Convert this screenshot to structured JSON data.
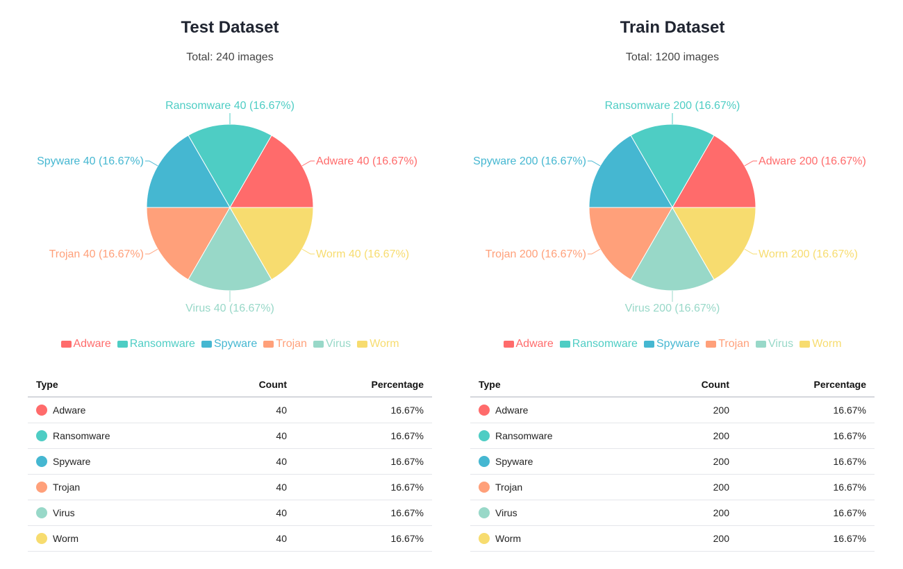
{
  "chart_data": [
    {
      "type": "pie",
      "title": "Test Dataset",
      "subtitle": "Total: 240 images",
      "categories": [
        "Adware",
        "Ransomware",
        "Spyware",
        "Trojan",
        "Virus",
        "Worm"
      ],
      "values": [
        40,
        40,
        40,
        40,
        40,
        40
      ],
      "percentages": [
        "16.67%",
        "16.67%",
        "16.67%",
        "16.67%",
        "16.67%",
        "16.67%"
      ],
      "slice_labels": [
        "Adware 40 (16.67%)",
        "Ransomware 40 (16.67%)",
        "Spyware 40 (16.67%)",
        "Trojan 40 (16.67%)",
        "Virus 40 (16.67%)",
        "Worm 40 (16.67%)"
      ],
      "colors": [
        "#ff6b6b",
        "#4ecdc4",
        "#45b7d1",
        "#ffa07a",
        "#98d8c8",
        "#f7dc6f"
      ],
      "legend_position": "bottom",
      "table": {
        "headers": [
          "Type",
          "Count",
          "Percentage"
        ],
        "rows": [
          {
            "type": "Adware",
            "count": "40",
            "percentage": "16.67%"
          },
          {
            "type": "Ransomware",
            "count": "40",
            "percentage": "16.67%"
          },
          {
            "type": "Spyware",
            "count": "40",
            "percentage": "16.67%"
          },
          {
            "type": "Trojan",
            "count": "40",
            "percentage": "16.67%"
          },
          {
            "type": "Virus",
            "count": "40",
            "percentage": "16.67%"
          },
          {
            "type": "Worm",
            "count": "40",
            "percentage": "16.67%"
          }
        ]
      }
    },
    {
      "type": "pie",
      "title": "Train Dataset",
      "subtitle": "Total: 1200 images",
      "categories": [
        "Adware",
        "Ransomware",
        "Spyware",
        "Trojan",
        "Virus",
        "Worm"
      ],
      "values": [
        200,
        200,
        200,
        200,
        200,
        200
      ],
      "percentages": [
        "16.67%",
        "16.67%",
        "16.67%",
        "16.67%",
        "16.67%",
        "16.67%"
      ],
      "slice_labels": [
        "Adware 200 (16.67%)",
        "Ransomware 200 (16.67%)",
        "Spyware 200 (16.67%)",
        "Trojan 200 (16.67%)",
        "Virus 200 (16.67%)",
        "Worm 200 (16.67%)"
      ],
      "colors": [
        "#ff6b6b",
        "#4ecdc4",
        "#45b7d1",
        "#ffa07a",
        "#98d8c8",
        "#f7dc6f"
      ],
      "legend_position": "bottom",
      "table": {
        "headers": [
          "Type",
          "Count",
          "Percentage"
        ],
        "rows": [
          {
            "type": "Adware",
            "count": "200",
            "percentage": "16.67%"
          },
          {
            "type": "Ransomware",
            "count": "200",
            "percentage": "16.67%"
          },
          {
            "type": "Spyware",
            "count": "200",
            "percentage": "16.67%"
          },
          {
            "type": "Trojan",
            "count": "200",
            "percentage": "16.67%"
          },
          {
            "type": "Virus",
            "count": "200",
            "percentage": "16.67%"
          },
          {
            "type": "Worm",
            "count": "200",
            "percentage": "16.67%"
          }
        ]
      }
    }
  ]
}
